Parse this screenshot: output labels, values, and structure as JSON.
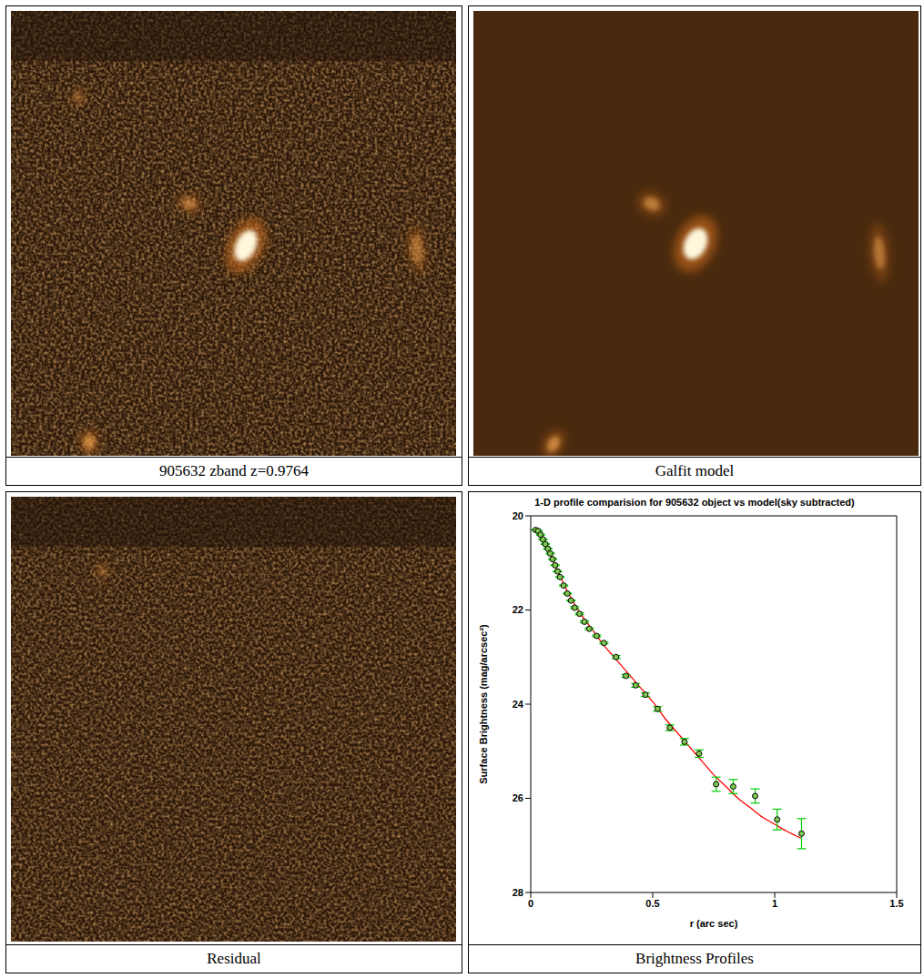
{
  "panels": [
    {
      "caption": "905632 zband z=0.9764"
    },
    {
      "caption": "Galfit model"
    },
    {
      "caption": "Residual"
    },
    {
      "caption": "Brightness Profiles"
    }
  ],
  "chart_data": {
    "type": "scatter",
    "title": "1-D profile comparision for 905632 object vs model(sky subtracted)",
    "x_label": "r (arc sec)",
    "y_label": "Surface Brightness (mag/arcsec²)",
    "xlim": [
      0,
      1.5
    ],
    "xticks": [
      0,
      0.5,
      1,
      1.5
    ],
    "ylim": [
      28,
      20
    ],
    "yticks": [
      20,
      22,
      24,
      26,
      28
    ],
    "grid": false,
    "series": [
      {
        "type": "scatter",
        "color": "#7ec850",
        "marker": "circle",
        "x": [
          0.02,
          0.03,
          0.04,
          0.05,
          0.06,
          0.07,
          0.08,
          0.09,
          0.1,
          0.11,
          0.12,
          0.135,
          0.15,
          0.165,
          0.18,
          0.2,
          0.22,
          0.24,
          0.27,
          0.3,
          0.35,
          0.39,
          0.43,
          0.47,
          0.52,
          0.57,
          0.63,
          0.69,
          0.76,
          0.83,
          0.92,
          1.01,
          1.11
        ],
        "values": [
          20.3,
          20.32,
          20.4,
          20.5,
          20.6,
          20.7,
          20.8,
          20.92,
          21.05,
          21.18,
          21.3,
          21.48,
          21.65,
          21.8,
          21.95,
          22.08,
          22.25,
          22.4,
          22.55,
          22.7,
          23.0,
          23.4,
          23.6,
          23.8,
          24.1,
          24.5,
          24.8,
          25.05,
          25.7,
          25.75,
          25.95,
          26.45,
          26.75
        ],
        "errors": [
          0.01,
          0.01,
          0.01,
          0.01,
          0.01,
          0.01,
          0.01,
          0.01,
          0.01,
          0.01,
          0.01,
          0.01,
          0.01,
          0.01,
          0.02,
          0.02,
          0.02,
          0.02,
          0.02,
          0.02,
          0.03,
          0.03,
          0.04,
          0.04,
          0.05,
          0.06,
          0.07,
          0.08,
          0.15,
          0.15,
          0.15,
          0.22,
          0.32
        ]
      },
      {
        "type": "line",
        "color": "#ff0000",
        "line_style": "solid",
        "x": [
          0.02,
          0.05,
          0.1,
          0.15,
          0.2,
          0.25,
          0.3,
          0.35,
          0.4,
          0.45,
          0.5,
          0.55,
          0.6,
          0.65,
          0.7,
          0.75,
          0.8,
          0.85,
          0.9,
          0.95,
          1.0,
          1.05,
          1.11
        ],
        "values": [
          20.28,
          20.5,
          21.05,
          21.6,
          22.05,
          22.4,
          22.75,
          23.05,
          23.35,
          23.65,
          23.95,
          24.3,
          24.6,
          24.9,
          25.2,
          25.5,
          25.75,
          26.0,
          26.2,
          26.4,
          26.55,
          26.7,
          26.85
        ]
      }
    ]
  }
}
